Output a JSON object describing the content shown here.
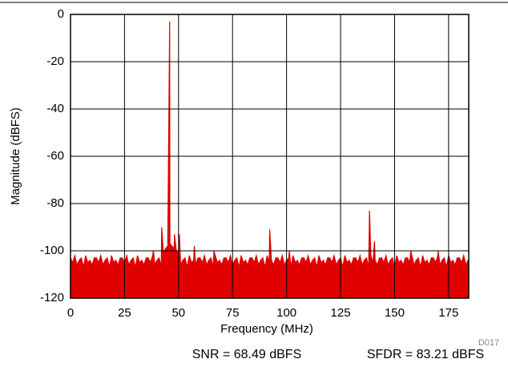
{
  "chart_data": {
    "type": "area",
    "xlabel": "Frequency (MHz)",
    "ylabel": "Magnitude (dBFS)",
    "annotations": [
      "D017",
      "SNR = 68.49 dBFS",
      "SFDR = 83.21 dBFS"
    ],
    "color": "#e00000",
    "grid": true,
    "xlim": [
      0,
      184.32
    ],
    "ylim": [
      -120,
      0
    ],
    "xticks": [
      0,
      25,
      50,
      75,
      100,
      125,
      150,
      175
    ],
    "yticks": [
      0,
      -20,
      -40,
      -60,
      -80,
      -100,
      -120
    ],
    "x": [
      0,
      1,
      2,
      3,
      4,
      5,
      6,
      7,
      8,
      9,
      10,
      11,
      12,
      13,
      14,
      15,
      16,
      17,
      18,
      19,
      20,
      21,
      22,
      23,
      24,
      25,
      26,
      27,
      28,
      29,
      30,
      31,
      32,
      33,
      34,
      35,
      36,
      37,
      38,
      38.4,
      39,
      40,
      41,
      42,
      42.2,
      43,
      44,
      45,
      45.9,
      46,
      47,
      48,
      48.1,
      49,
      50,
      50.4,
      51,
      52,
      53,
      54,
      55,
      56,
      57,
      57.3,
      58,
      59,
      60,
      61,
      62,
      63,
      64,
      65,
      66,
      66.4,
      67,
      68,
      69,
      70,
      71,
      72,
      73,
      74,
      75,
      76,
      77,
      78,
      79,
      80,
      81,
      82,
      83,
      84,
      85,
      86,
      87,
      88,
      89,
      90,
      91,
      92,
      92.2,
      93,
      94,
      95,
      96,
      97,
      98,
      99,
      100,
      101,
      101.3,
      102,
      103,
      104,
      105,
      106,
      107,
      108,
      109,
      110,
      111,
      112,
      113,
      114,
      115,
      116,
      117,
      118,
      119,
      120,
      121,
      122,
      123,
      124,
      125,
      126,
      127,
      128,
      129,
      130,
      131,
      132,
      133,
      134,
      135,
      136,
      137,
      138,
      138.4,
      139,
      140,
      140.7,
      141,
      142,
      143,
      144,
      145,
      146,
      147,
      148,
      149,
      150,
      151,
      152,
      153,
      154,
      155,
      156,
      157,
      157.5,
      158,
      159,
      160,
      161,
      162,
      163,
      164,
      165,
      166,
      167,
      168,
      169,
      170,
      170.2,
      171,
      172,
      173,
      174,
      175,
      176,
      177,
      178,
      179,
      180,
      181,
      182,
      183,
      184
    ],
    "values": [
      -103,
      -105,
      -102,
      -106,
      -104,
      -103,
      -107,
      -102,
      -105,
      -104,
      -106,
      -103,
      -103,
      -105,
      -102,
      -106,
      -104,
      -103,
      -107,
      -102,
      -105,
      -104,
      -106,
      -103,
      -103,
      -105,
      -102,
      -106,
      -104,
      -103,
      -107,
      -102,
      -105,
      -104,
      -106,
      -103,
      -103,
      -105,
      -102,
      -100,
      -106,
      -104,
      -103,
      -107,
      -90,
      -101,
      -99,
      -98,
      -3,
      -97,
      -98,
      -99,
      -93,
      -100,
      -101,
      -93,
      -106,
      -104,
      -103,
      -107,
      -102,
      -105,
      -104,
      -98,
      -106,
      -103,
      -103,
      -105,
      -102,
      -106,
      -104,
      -103,
      -107,
      -100,
      -102,
      -105,
      -104,
      -106,
      -103,
      -103,
      -105,
      -102,
      -106,
      -104,
      -103,
      -107,
      -102,
      -105,
      -104,
      -106,
      -103,
      -103,
      -105,
      -102,
      -106,
      -104,
      -103,
      -107,
      -102,
      -105,
      -91,
      -104,
      -106,
      -103,
      -103,
      -105,
      -102,
      -106,
      -104,
      -103,
      -100,
      -107,
      -102,
      -105,
      -104,
      -106,
      -103,
      -103,
      -105,
      -102,
      -106,
      -104,
      -103,
      -107,
      -102,
      -105,
      -104,
      -106,
      -103,
      -103,
      -105,
      -102,
      -106,
      -104,
      -103,
      -107,
      -102,
      -105,
      -104,
      -106,
      -103,
      -103,
      -105,
      -102,
      -106,
      -104,
      -103,
      -107,
      -83,
      -102,
      -105,
      -96,
      -104,
      -106,
      -103,
      -103,
      -105,
      -102,
      -106,
      -104,
      -103,
      -107,
      -102,
      -105,
      -104,
      -106,
      -103,
      -103,
      -105,
      -100,
      -102,
      -106,
      -104,
      -103,
      -107,
      -102,
      -105,
      -104,
      -106,
      -103,
      -103,
      -105,
      -102,
      -100,
      -106,
      -104,
      -103,
      -107,
      -102,
      -105,
      -104,
      -106,
      -103,
      -103,
      -105,
      -102,
      -106,
      -104
    ]
  }
}
